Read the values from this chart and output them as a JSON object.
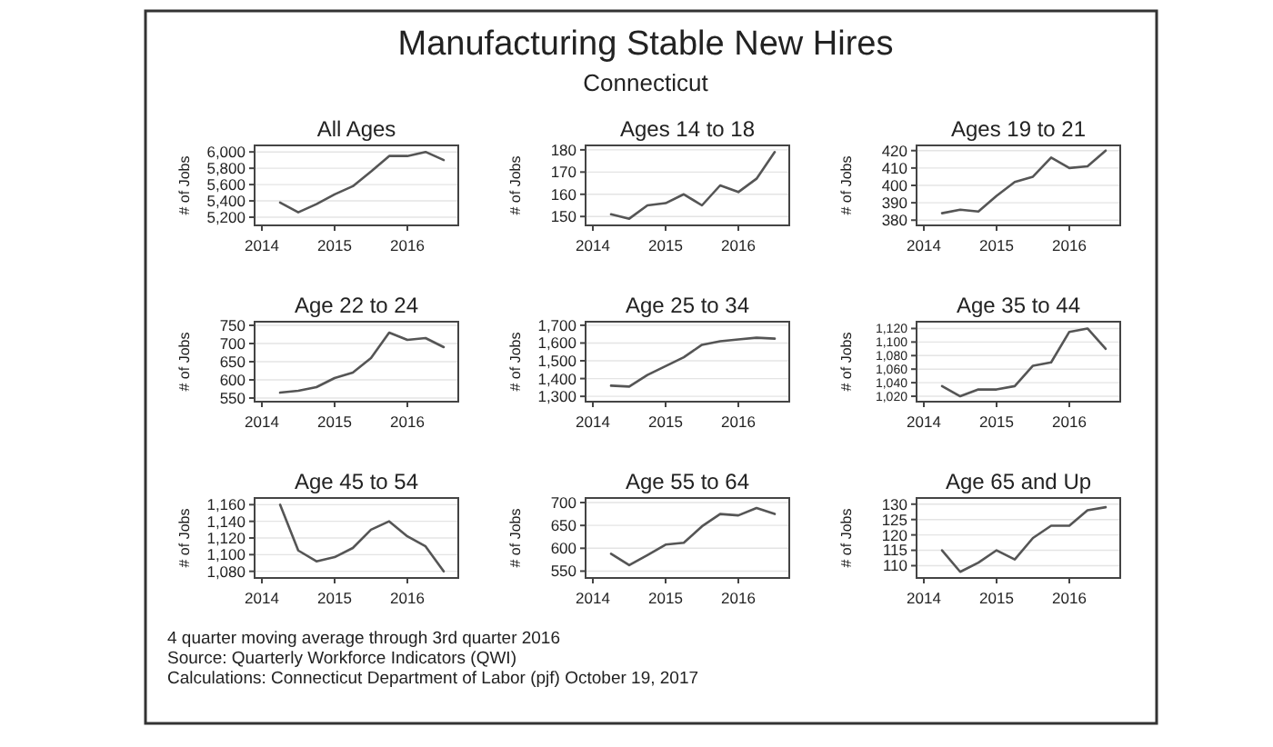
{
  "chart_data": [
    {
      "type": "other",
      "title": "Manufacturing Stable New Hires",
      "subtitle": "Connecticut",
      "annotations": [
        "4 quarter moving average through 3rd quarter 2016",
        "Source: Quarterly Workforce Indicators (QWI)",
        "Calculations: Connecticut Department of Labor (pjf) October 19, 2017"
      ]
    },
    {
      "type": "line",
      "title": "All Ages",
      "ylabel": "# of Jobs",
      "x": [
        2014.25,
        2014.5,
        2014.75,
        2015,
        2015.25,
        2015.5,
        2015.75,
        2016,
        2016.25,
        2016.5
      ],
      "series": [
        {
          "color": "#555555",
          "values": [
            5380,
            5260,
            5360,
            5480,
            5580,
            5760,
            5950,
            5950,
            6000,
            5900
          ]
        }
      ],
      "xlim": [
        2013.9,
        2016.7
      ],
      "xticks": [
        2014,
        2015,
        2016
      ],
      "ylim": [
        5100,
        6080
      ],
      "yticks": [
        {
          "value": 5200,
          "label": "5,200"
        },
        {
          "value": 5400,
          "label": "5,400"
        },
        {
          "value": 5600,
          "label": "5,600"
        },
        {
          "value": 5800,
          "label": "5,800"
        },
        {
          "value": 6000,
          "label": "6,000"
        }
      ],
      "grid": "y"
    },
    {
      "type": "line",
      "title": "Ages 14 to 18",
      "ylabel": "# of Jobs",
      "x": [
        2014.25,
        2014.5,
        2014.75,
        2015,
        2015.25,
        2015.5,
        2015.75,
        2016,
        2016.25,
        2016.5
      ],
      "series": [
        {
          "color": "#555555",
          "values": [
            151,
            149,
            155,
            156,
            160,
            155,
            164,
            161,
            167,
            179
          ]
        }
      ],
      "xlim": [
        2013.9,
        2016.7
      ],
      "xticks": [
        2014,
        2015,
        2016
      ],
      "ylim": [
        146,
        182
      ],
      "yticks": [
        150,
        160,
        170,
        180
      ],
      "grid": "y"
    },
    {
      "type": "line",
      "title": "Ages 19 to 21",
      "ylabel": "# of Jobs",
      "x": [
        2014.25,
        2014.5,
        2014.75,
        2015,
        2015.25,
        2015.5,
        2015.75,
        2016,
        2016.25,
        2016.5
      ],
      "series": [
        {
          "color": "#555555",
          "values": [
            384,
            386,
            385,
            394,
            402,
            405,
            416,
            410,
            411,
            420
          ]
        }
      ],
      "xlim": [
        2013.9,
        2016.7
      ],
      "xticks": [
        2014,
        2015,
        2016
      ],
      "ylim": [
        377,
        423
      ],
      "yticks": [
        380,
        390,
        400,
        410,
        420
      ],
      "grid": "y"
    },
    {
      "type": "line",
      "title": "Age 22 to 24",
      "ylabel": "# of Jobs",
      "x": [
        2014.25,
        2014.5,
        2014.75,
        2015,
        2015.25,
        2015.5,
        2015.75,
        2016,
        2016.25,
        2016.5
      ],
      "series": [
        {
          "color": "#555555",
          "values": [
            565,
            570,
            580,
            605,
            620,
            660,
            730,
            710,
            715,
            690
          ]
        }
      ],
      "xlim": [
        2013.9,
        2016.7
      ],
      "xticks": [
        2014,
        2015,
        2016
      ],
      "ylim": [
        540,
        760
      ],
      "yticks": [
        550,
        600,
        650,
        700,
        750
      ],
      "grid": "y"
    },
    {
      "type": "line",
      "title": "Age 25 to 34",
      "ylabel": "# of Jobs",
      "x": [
        2014.25,
        2014.5,
        2014.75,
        2015,
        2015.25,
        2015.5,
        2015.75,
        2016,
        2016.25,
        2016.5
      ],
      "series": [
        {
          "color": "#555555",
          "values": [
            1360,
            1355,
            1420,
            1470,
            1520,
            1590,
            1610,
            1620,
            1630,
            1625
          ]
        }
      ],
      "xlim": [
        2013.9,
        2016.7
      ],
      "xticks": [
        2014,
        2015,
        2016
      ],
      "ylim": [
        1270,
        1720
      ],
      "yticks": [
        {
          "value": 1300,
          "label": "1,300"
        },
        {
          "value": 1400,
          "label": "1,400"
        },
        {
          "value": 1500,
          "label": "1,500"
        },
        {
          "value": 1600,
          "label": "1,600"
        },
        {
          "value": 1700,
          "label": "1,700"
        }
      ],
      "grid": "y"
    },
    {
      "type": "line",
      "title": "Age 35 to 44",
      "ylabel": "# of Jobs",
      "x": [
        2014.25,
        2014.5,
        2014.75,
        2015,
        2015.25,
        2015.5,
        2015.75,
        2016,
        2016.25,
        2016.5
      ],
      "series": [
        {
          "color": "#555555",
          "values": [
            1035,
            1020,
            1030,
            1030,
            1035,
            1065,
            1070,
            1115,
            1120,
            1090
          ]
        }
      ],
      "xlim": [
        2013.9,
        2016.7
      ],
      "xticks": [
        2014,
        2015,
        2016
      ],
      "ylim": [
        1012,
        1130
      ],
      "yticks": [
        {
          "value": 1020,
          "label": "1,020"
        },
        {
          "value": 1040,
          "label": "1,040"
        },
        {
          "value": 1060,
          "label": "1,060"
        },
        {
          "value": 1080,
          "label": "1,080"
        },
        {
          "value": 1100,
          "label": "1,100"
        },
        {
          "value": 1120,
          "label": "1,120"
        }
      ],
      "grid": "y"
    },
    {
      "type": "line",
      "title": "Age 45 to 54",
      "ylabel": "# of Jobs",
      "x": [
        2014.25,
        2014.5,
        2014.75,
        2015,
        2015.25,
        2015.5,
        2015.75,
        2016,
        2016.25,
        2016.5
      ],
      "series": [
        {
          "color": "#555555",
          "values": [
            1160,
            1105,
            1092,
            1097,
            1108,
            1130,
            1140,
            1122,
            1110,
            1080
          ]
        }
      ],
      "xlim": [
        2013.9,
        2016.7
      ],
      "xticks": [
        2014,
        2015,
        2016
      ],
      "ylim": [
        1072,
        1168
      ],
      "yticks": [
        {
          "value": 1080,
          "label": "1,080"
        },
        {
          "value": 1100,
          "label": "1,100"
        },
        {
          "value": 1120,
          "label": "1,120"
        },
        {
          "value": 1140,
          "label": "1,140"
        },
        {
          "value": 1160,
          "label": "1,160"
        }
      ],
      "grid": "y"
    },
    {
      "type": "line",
      "title": "Age 55 to 64",
      "ylabel": "# of Jobs",
      "x": [
        2014.25,
        2014.5,
        2014.75,
        2015,
        2015.25,
        2015.5,
        2015.75,
        2016,
        2016.25,
        2016.5
      ],
      "series": [
        {
          "color": "#555555",
          "values": [
            588,
            563,
            585,
            608,
            612,
            648,
            675,
            672,
            688,
            675
          ]
        }
      ],
      "xlim": [
        2013.9,
        2016.7
      ],
      "xticks": [
        2014,
        2015,
        2016
      ],
      "ylim": [
        535,
        710
      ],
      "yticks": [
        550,
        600,
        650,
        700
      ],
      "grid": "y"
    },
    {
      "type": "line",
      "title": "Age 65 and Up",
      "ylabel": "# of Jobs",
      "x": [
        2014.25,
        2014.5,
        2014.75,
        2015,
        2015.25,
        2015.5,
        2015.75,
        2016,
        2016.25,
        2016.5
      ],
      "series": [
        {
          "color": "#555555",
          "values": [
            115,
            108,
            111,
            115,
            112,
            119,
            123,
            123,
            128,
            129
          ]
        }
      ],
      "xlim": [
        2013.9,
        2016.7
      ],
      "xticks": [
        2014,
        2015,
        2016
      ],
      "ylim": [
        106,
        132
      ],
      "yticks": [
        110,
        115,
        120,
        125,
        130
      ],
      "grid": "y"
    }
  ]
}
